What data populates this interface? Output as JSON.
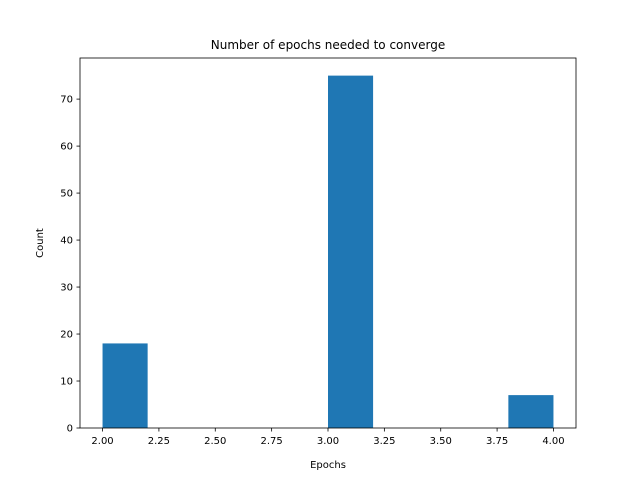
{
  "chart_data": {
    "type": "bar",
    "title": "Number of epochs needed to converge",
    "xlabel": "Epochs",
    "ylabel": "Count",
    "xlim": [
      1.9,
      4.1
    ],
    "ylim": [
      0,
      78.75
    ],
    "bin_edges": [
      2.0,
      2.2,
      2.4,
      2.6,
      2.8,
      3.0,
      3.2,
      3.4,
      3.6,
      3.8,
      4.0
    ],
    "values": [
      18,
      0,
      0,
      0,
      0,
      75,
      0,
      0,
      0,
      7
    ],
    "xticks": [
      2.0,
      2.25,
      2.5,
      2.75,
      3.0,
      3.25,
      3.5,
      3.75,
      4.0
    ],
    "xtick_labels": [
      "2.00",
      "2.25",
      "2.50",
      "2.75",
      "3.00",
      "3.25",
      "3.50",
      "3.75",
      "4.00"
    ],
    "yticks": [
      0,
      10,
      20,
      30,
      40,
      50,
      60,
      70
    ],
    "ytick_labels": [
      "0",
      "10",
      "20",
      "30",
      "40",
      "50",
      "60",
      "70"
    ],
    "grid": false,
    "bar_color": "#1f77b4"
  }
}
